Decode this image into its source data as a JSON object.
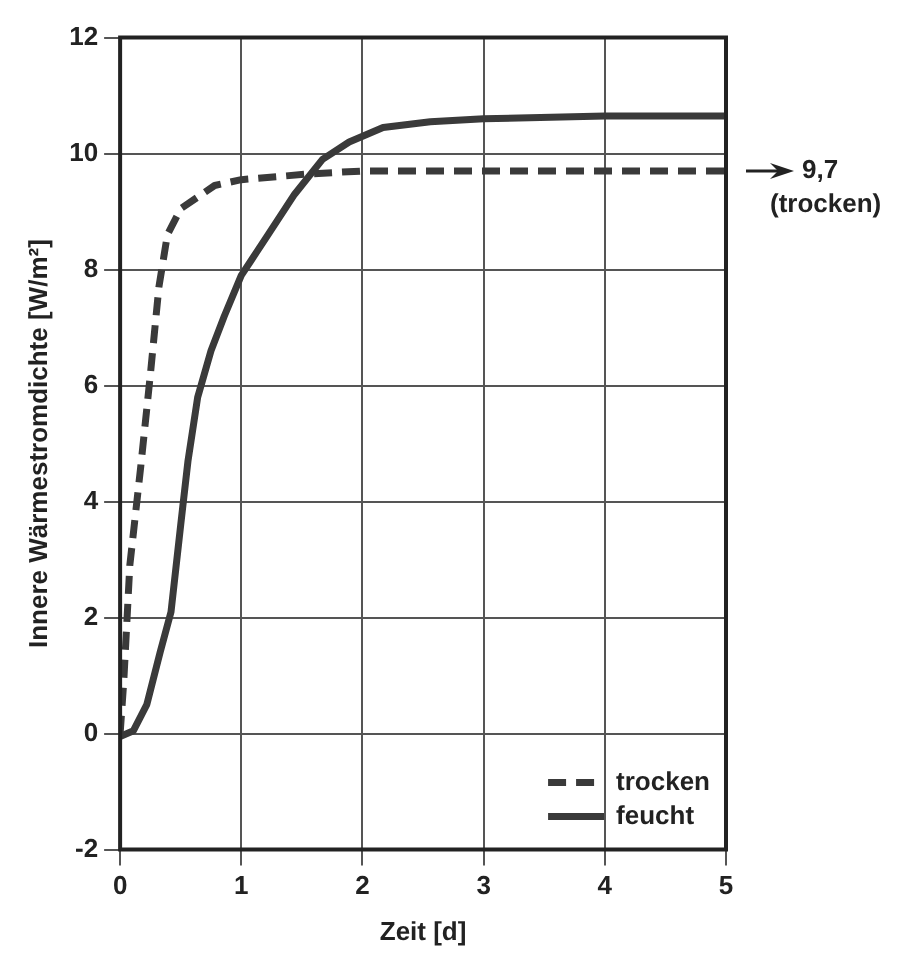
{
  "chart_data": {
    "type": "line",
    "xlabel": "Zeit [d]",
    "ylabel": "Innere Wärmestromdichte [W/m²]",
    "xlim": [
      0,
      5
    ],
    "xticks": [
      0,
      1,
      2,
      3,
      4,
      5
    ],
    "ylim": [
      -2,
      12
    ],
    "yticks": [
      -2,
      0,
      2,
      4,
      6,
      8,
      10,
      12
    ],
    "grid": true,
    "legend": "bottom right",
    "marker": "none",
    "annotations": [
      {
        "text": "9,7 (trocken)",
        "x": 5,
        "y": 9.7
      }
    ],
    "series": [
      {
        "name": "trocken",
        "color": "#3a3a3a",
        "line_style": "dashed",
        "x": [
          0,
          0.03,
          0.08,
          0.17,
          0.25,
          0.32,
          0.39,
          0.5,
          0.78,
          1,
          1.56,
          2,
          3,
          4,
          5
        ],
        "values": [
          0,
          0.9,
          2.9,
          4.6,
          6.2,
          7.7,
          8.6,
          9.05,
          9.45,
          9.55,
          9.65,
          9.7,
          9.7,
          9.7,
          9.7
        ]
      },
      {
        "name": "feucht",
        "color": "#3a3a3a",
        "line_style": "solid",
        "x": [
          0,
          0.11,
          0.22,
          0.33,
          0.42,
          0.5,
          0.56,
          0.64,
          0.75,
          0.86,
          1,
          1.22,
          1.44,
          1.67,
          1.89,
          2.17,
          2.56,
          3,
          4,
          5
        ],
        "values": [
          -0.05,
          0.05,
          0.5,
          1.4,
          2.1,
          3.6,
          4.7,
          5.8,
          6.6,
          7.2,
          7.9,
          8.6,
          9.3,
          9.9,
          10.2,
          10.45,
          10.55,
          10.6,
          10.65,
          10.65
        ]
      }
    ]
  }
}
